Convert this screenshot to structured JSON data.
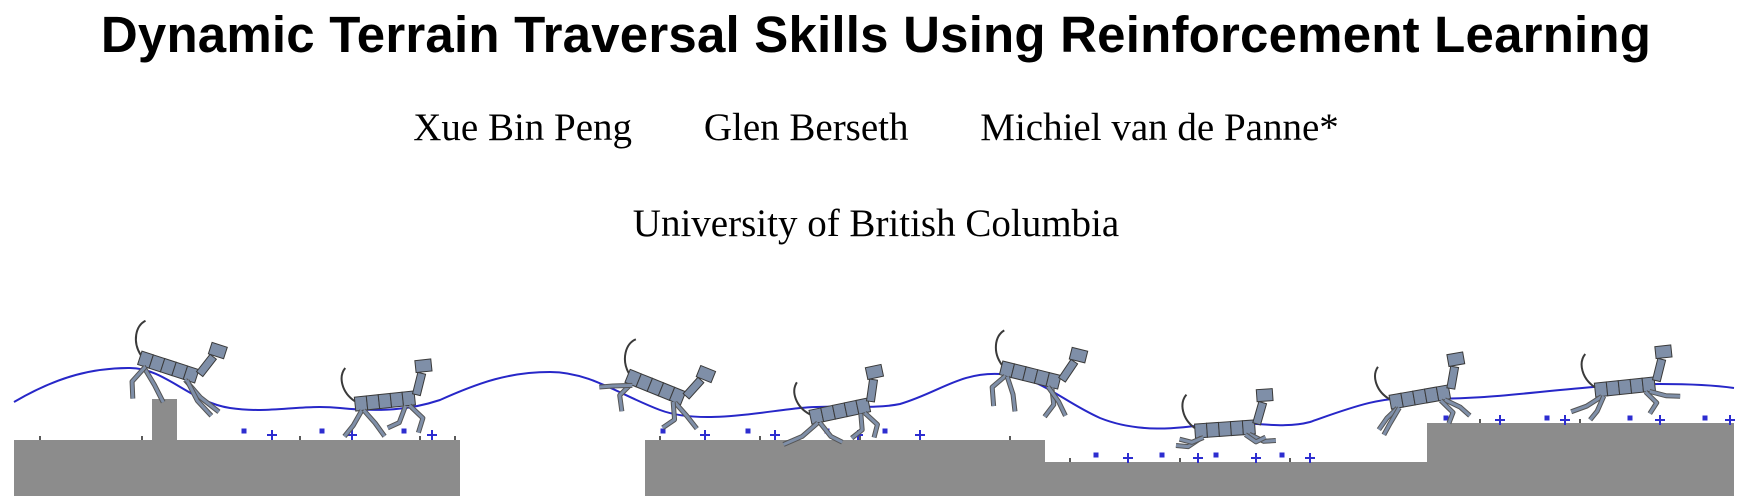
{
  "paper": {
    "title": "Dynamic Terrain Traversal Skills Using Reinforcement Learning",
    "authors": [
      "Xue Bin Peng",
      "Glen Berseth",
      "Michiel van de Panne*"
    ],
    "affiliation": "University of British Columbia"
  },
  "figure": {
    "ground_color": "#8c8c8c",
    "trajectory_color": "#2727c8",
    "marker_color": "#2d2dd0",
    "dog_fill": "#7f8fa8",
    "dog_stroke": "#3a3a3a"
  }
}
